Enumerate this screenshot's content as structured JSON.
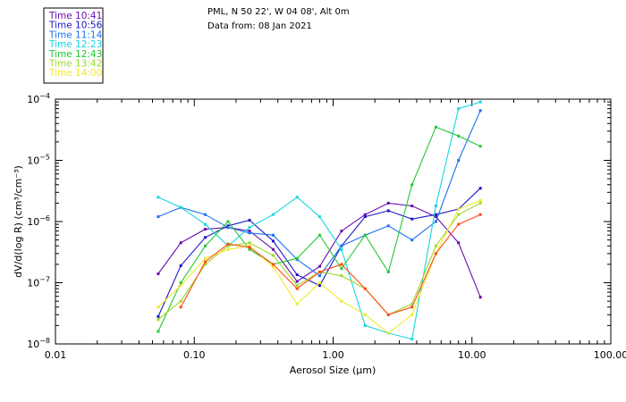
{
  "header": {
    "line1": "PML, N 50 22', W 04 08', Alt 0m",
    "line2": "Data from: 08 Jan 2021"
  },
  "chart_data": {
    "type": "line",
    "xscale": "log",
    "yscale": "log",
    "xlim": [
      0.01,
      100.0
    ],
    "ylim": [
      1e-08,
      0.0001
    ],
    "xlabel": "Aerosol Size (μm)",
    "ylabel": "dV/d(log R) (cm³/cm⁻³)",
    "xticks": [
      {
        "value": 0.01,
        "label": "0.01"
      },
      {
        "value": 0.1,
        "label": "0.10"
      },
      {
        "value": 1.0,
        "label": "1.00"
      },
      {
        "value": 10.0,
        "label": "10.00"
      },
      {
        "value": 100.0,
        "label": "100.00"
      }
    ],
    "yticks": [
      {
        "value": 1e-08,
        "mantissa": "10",
        "exp": "−8"
      },
      {
        "value": 1e-07,
        "mantissa": "10",
        "exp": "−7"
      },
      {
        "value": 1e-06,
        "mantissa": "10",
        "exp": "−6"
      },
      {
        "value": 1e-05,
        "mantissa": "10",
        "exp": "−5"
      },
      {
        "value": 0.0001,
        "mantissa": "10",
        "exp": "−4"
      }
    ],
    "x": [
      0.055,
      0.08,
      0.12,
      0.175,
      0.25,
      0.37,
      0.55,
      0.8,
      1.15,
      1.7,
      2.5,
      3.7,
      5.5,
      8.0,
      11.5
    ],
    "series": [
      {
        "name": "Time 10:41",
        "color": "#6a0dad",
        "values": [
          1.4e-07,
          4.5e-07,
          7.5e-07,
          8e-07,
          7e-07,
          3.5e-07,
          1.05e-07,
          1.85e-07,
          7e-07,
          1.3e-06,
          2e-06,
          1.8e-06,
          1.2e-06,
          4.5e-07,
          5.8e-08
        ]
      },
      {
        "name": "Time 10:56",
        "color": "#1c18c8",
        "values": [
          2.8e-08,
          1.9e-07,
          5.5e-07,
          8.5e-07,
          1.05e-06,
          4.8e-07,
          1.35e-07,
          9e-08,
          4e-07,
          1.2e-06,
          1.5e-06,
          1.1e-06,
          1.3e-06,
          1.6e-06,
          3.5e-06
        ]
      },
      {
        "name": "Time 11:14",
        "color": "#1e70f0",
        "values": [
          1.2e-06,
          1.7e-06,
          1.3e-06,
          8e-07,
          6.5e-07,
          6e-07,
          2.4e-07,
          1.3e-07,
          4e-07,
          6e-07,
          8.5e-07,
          5e-07,
          1e-06,
          1e-05,
          6.5e-05
        ]
      },
      {
        "name": "Time 12:23",
        "color": "#16d6e0",
        "values": [
          2.5e-06,
          1.7e-06,
          9e-07,
          4e-07,
          8e-07,
          1.3e-06,
          2.5e-06,
          1.2e-06,
          3.5e-07,
          2e-08,
          1.5e-08,
          1.2e-08,
          1.8e-06,
          7e-05,
          9e-05
        ]
      },
      {
        "name": "Time 12:43",
        "color": "#22c832",
        "values": [
          1.6e-08,
          1e-07,
          4e-07,
          1e-06,
          3.5e-07,
          2e-07,
          2.5e-07,
          6e-07,
          1.7e-07,
          6e-07,
          1.5e-07,
          4e-06,
          3.5e-05,
          2.5e-05,
          1.7e-05
        ]
      },
      {
        "name": "Time 13:42",
        "color": "#9ed82a",
        "values": [
          2.5e-08,
          5e-08,
          2e-07,
          4e-07,
          4.5e-07,
          2.8e-07,
          9e-08,
          1.5e-07,
          1.3e-07,
          8e-08,
          3e-08,
          4.5e-08,
          4e-07,
          1.3e-06,
          2e-06
        ]
      },
      {
        "name": "Time 14:00",
        "color": "#f2e82a",
        "values": [
          4e-08,
          9e-08,
          2.5e-07,
          3.5e-07,
          4e-07,
          1.8e-07,
          4.5e-08,
          1e-07,
          5e-08,
          3e-08,
          1.5e-08,
          3e-08,
          3e-07,
          1.6e-06,
          2.2e-06
        ]
      },
      {
        "name": "",
        "color": "#ff4a14",
        "values": [
          null,
          4e-08,
          2.2e-07,
          4.3e-07,
          3.8e-07,
          2e-07,
          8e-08,
          1.5e-07,
          2e-07,
          8e-08,
          3e-08,
          4e-08,
          3e-07,
          9e-07,
          1.3e-06
        ]
      }
    ]
  }
}
